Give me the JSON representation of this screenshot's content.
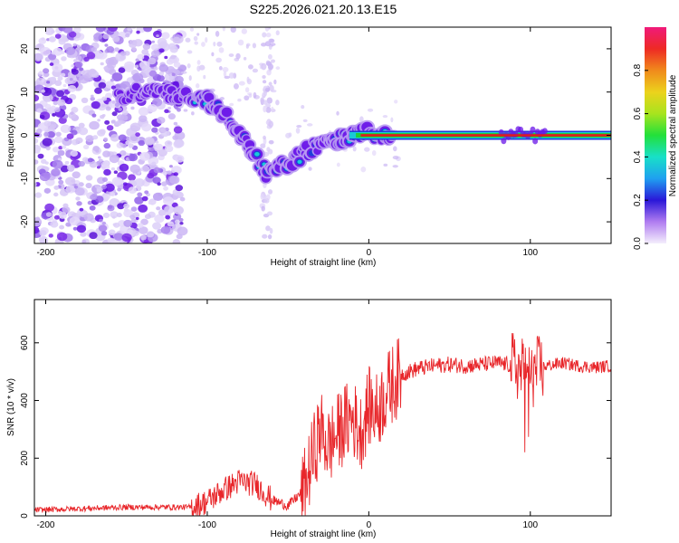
{
  "title": "S225.2026.021.20.13.E15",
  "colors": {
    "snr_line": "#e8262a",
    "axis": "#000000",
    "cloud_light": "#d2c2f5",
    "cloud_dark": "#6a16e8",
    "track_core": "#e01b1b",
    "track_mid": "#1fcf3a",
    "track_outer": "#1e3fd8"
  },
  "chart_data": [
    {
      "type": "heatmap",
      "title": "",
      "xlabel": "Height of straight line (km)",
      "ylabel": "Frequency (Hz)",
      "xlim": [
        -207,
        150
      ],
      "ylim": [
        -25,
        25
      ],
      "xticks": [
        -200,
        -100,
        0,
        100
      ],
      "yticks": [
        -20,
        -10,
        0,
        10,
        20
      ],
      "xtick_labels": [
        "-200",
        "-100",
        "0",
        "100"
      ],
      "ytick_labels": [
        "-20",
        "-10",
        "0",
        "10",
        "20"
      ],
      "track": {
        "x": [
          -150,
          -135,
          -115,
          -100,
          -90,
          -80,
          -70,
          -63,
          -55,
          -47,
          -40,
          -30,
          -20,
          -10,
          0,
          10,
          100,
          110,
          150
        ],
        "y": [
          9,
          11,
          9,
          8,
          5,
          0,
          -5,
          -9,
          -7,
          -6,
          -4,
          -2,
          -1,
          0,
          0.5,
          0,
          0,
          0,
          0
        ]
      },
      "colorbar": {
        "label": "Normalized spectral amplitude",
        "range": [
          0,
          1
        ],
        "ticks": [
          "0.0",
          "0.2",
          "0.4",
          "0.6",
          "0.8"
        ],
        "tick_values": [
          0.0,
          0.2,
          0.4,
          0.6,
          0.8
        ]
      }
    },
    {
      "type": "line",
      "title": "",
      "xlabel": "Height of straight line (km)",
      "ylabel": "SNR (10 * v/v)",
      "xlim": [
        -207,
        150
      ],
      "ylim": [
        0,
        750
      ],
      "xticks": [
        -200,
        -100,
        0,
        100
      ],
      "yticks": [
        0,
        200,
        400,
        600
      ],
      "xtick_labels": [
        "-200",
        "-100",
        "0",
        "100"
      ],
      "ytick_labels": [
        "0",
        "200",
        "400",
        "600"
      ],
      "series": [
        {
          "name": "SNR",
          "x": [
            -207,
            -150,
            -110,
            -100,
            -90,
            -80,
            -70,
            -60,
            -50,
            -40,
            -35,
            -30,
            -25,
            -20,
            -15,
            -10,
            -5,
            0,
            5,
            10,
            15,
            20,
            30,
            40,
            50,
            60,
            70,
            80,
            90,
            95,
            100,
            105,
            110,
            120,
            130,
            140,
            150
          ],
          "y": [
            20,
            30,
            30,
            50,
            90,
            120,
            110,
            55,
            35,
            90,
            200,
            300,
            240,
            280,
            320,
            340,
            290,
            380,
            360,
            420,
            460,
            490,
            510,
            520,
            525,
            520,
            525,
            530,
            520,
            500,
            480,
            510,
            520,
            530,
            520,
            515,
            520
          ]
        }
      ]
    }
  ]
}
